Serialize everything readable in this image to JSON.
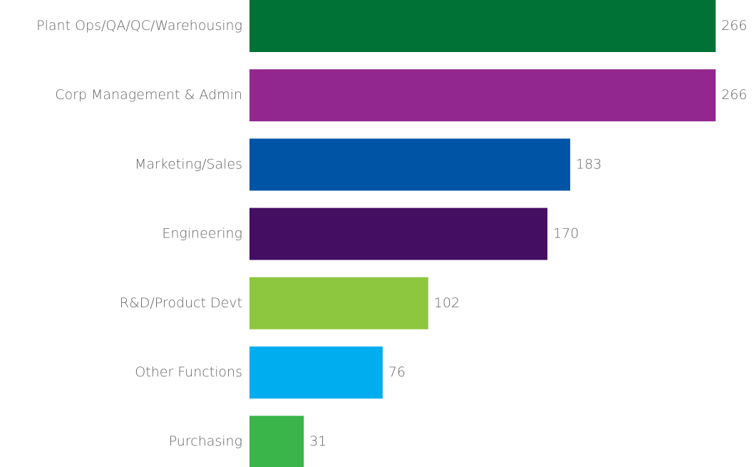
{
  "chart_data": {
    "type": "bar",
    "orientation": "horizontal",
    "categories": [
      "Plant Ops/QA/QC/Warehousing",
      "Corp Management & Admin",
      "Marketing/Sales",
      "Engineering",
      "R&D/Product Devt",
      "Other Functions",
      "Purchasing"
    ],
    "values": [
      266,
      266,
      183,
      170,
      102,
      76,
      31
    ],
    "colors": [
      "#007236",
      "#92278f",
      "#0054a6",
      "#440e62",
      "#8dc63f",
      "#00aeef",
      "#39b54a"
    ]
  }
}
